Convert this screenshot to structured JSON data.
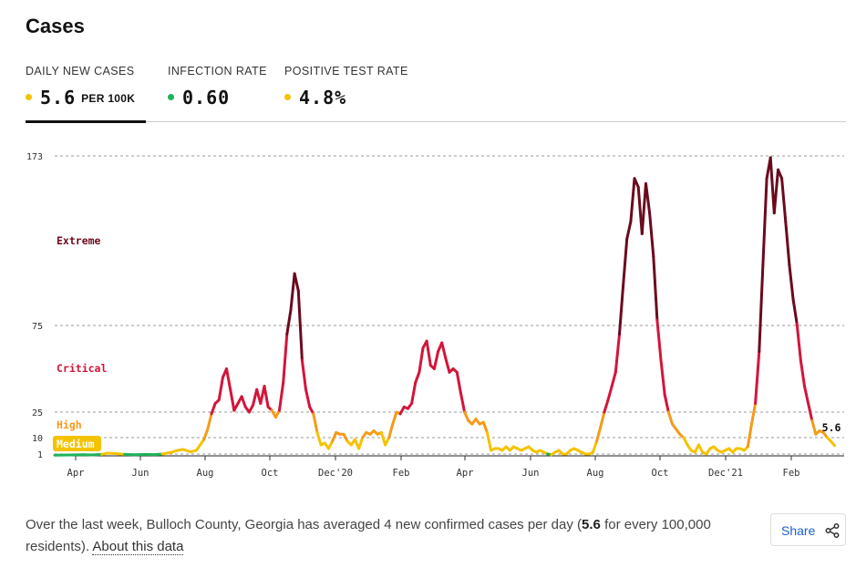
{
  "title": "Cases",
  "metrics": [
    {
      "label": "DAILY NEW CASES",
      "value": "5.6",
      "unit": "PER 100K",
      "dot_color": "#f5c200"
    },
    {
      "label": "INFECTION RATE",
      "value": "0.60",
      "unit": "",
      "dot_color": "#1fb25a"
    },
    {
      "label": "POSITIVE TEST RATE",
      "value": "4.8%",
      "unit": "",
      "dot_color": "#f5c200"
    }
  ],
  "zones": {
    "extreme": "Extreme",
    "critical": "Critical",
    "high": "High",
    "medium": "Medium"
  },
  "colors": {
    "extreme": "#6b0a1e",
    "critical": "#d3153a",
    "high": "#f59a1a",
    "medium": "#f5c200",
    "low": "#1fb25a"
  },
  "chart_data": {
    "type": "line",
    "ytick_labels": [
      "173",
      "75",
      "25",
      "10",
      "1"
    ],
    "thresholds": [
      1,
      10,
      25,
      75
    ],
    "xtick_labels": [
      "Apr",
      "Jun",
      "Aug",
      "Oct",
      "Dec'20",
      "Feb",
      "Apr",
      "Jun",
      "Aug",
      "Oct",
      "Dec'21",
      "Feb"
    ],
    "end_label": "5.6",
    "series": [
      {
        "values": [
          [
            0,
            0.4
          ],
          [
            8,
            0.5
          ],
          [
            15,
            0.6
          ],
          [
            20,
            0.5
          ],
          [
            25,
            0.8
          ],
          [
            28,
            1.5
          ],
          [
            33,
            1.2
          ],
          [
            37,
            0.8
          ],
          [
            42,
            0.6
          ],
          [
            48,
            0.8
          ],
          [
            53,
            0.7
          ],
          [
            57,
            1
          ],
          [
            62,
            2
          ],
          [
            65,
            3
          ],
          [
            68,
            3.5
          ],
          [
            72,
            2.2
          ],
          [
            75,
            3
          ],
          [
            79,
            9
          ],
          [
            81,
            15
          ],
          [
            83,
            24
          ],
          [
            85,
            30
          ],
          [
            87,
            32
          ],
          [
            89,
            45
          ],
          [
            91,
            50
          ],
          [
            93,
            38
          ],
          [
            95,
            26
          ],
          [
            97,
            30
          ],
          [
            99,
            34
          ],
          [
            101,
            28
          ],
          [
            103,
            25
          ],
          [
            105,
            29
          ],
          [
            107,
            38
          ],
          [
            109,
            30
          ],
          [
            111,
            40
          ],
          [
            113,
            28
          ],
          [
            115,
            26
          ],
          [
            117,
            22
          ],
          [
            119,
            26
          ],
          [
            121,
            42
          ],
          [
            123,
            70
          ],
          [
            125,
            84
          ],
          [
            127,
            105
          ],
          [
            129,
            95
          ],
          [
            131,
            55
          ],
          [
            133,
            38
          ],
          [
            135,
            28
          ],
          [
            137,
            24
          ],
          [
            139,
            13
          ],
          [
            141,
            6
          ],
          [
            143,
            7
          ],
          [
            145,
            4
          ],
          [
            147,
            8
          ],
          [
            149,
            13
          ],
          [
            151,
            12
          ],
          [
            153,
            12
          ],
          [
            155,
            8
          ],
          [
            157,
            6
          ],
          [
            159,
            9
          ],
          [
            161,
            4
          ],
          [
            163,
            10
          ],
          [
            165,
            13
          ],
          [
            167,
            12
          ],
          [
            169,
            14
          ],
          [
            171,
            12
          ],
          [
            173,
            13
          ],
          [
            175,
            6
          ],
          [
            177,
            10
          ],
          [
            179,
            18
          ],
          [
            181,
            25
          ],
          [
            183,
            24
          ],
          [
            185,
            28
          ],
          [
            187,
            27
          ],
          [
            189,
            30
          ],
          [
            191,
            42
          ],
          [
            193,
            48
          ],
          [
            195,
            62
          ],
          [
            197,
            66
          ],
          [
            199,
            52
          ],
          [
            201,
            50
          ],
          [
            203,
            60
          ],
          [
            205,
            65
          ],
          [
            207,
            56
          ],
          [
            209,
            48
          ],
          [
            211,
            50
          ],
          [
            213,
            48
          ],
          [
            215,
            36
          ],
          [
            217,
            25
          ],
          [
            219,
            20
          ],
          [
            221,
            18
          ],
          [
            223,
            21
          ],
          [
            225,
            18
          ],
          [
            227,
            19
          ],
          [
            229,
            13
          ],
          [
            231,
            3
          ],
          [
            233,
            4
          ],
          [
            235,
            4
          ],
          [
            237,
            3
          ],
          [
            239,
            5
          ],
          [
            241,
            3
          ],
          [
            243,
            5
          ],
          [
            245,
            4
          ],
          [
            247,
            3
          ],
          [
            249,
            4
          ],
          [
            251,
            5
          ],
          [
            253,
            3
          ],
          [
            255,
            2
          ],
          [
            257,
            3
          ],
          [
            259,
            2
          ],
          [
            261,
            1
          ],
          [
            263,
            0.6
          ],
          [
            265,
            2
          ],
          [
            267,
            3
          ],
          [
            269,
            1
          ],
          [
            271,
            1
          ],
          [
            273,
            3
          ],
          [
            275,
            4
          ],
          [
            277,
            3
          ],
          [
            279,
            2
          ],
          [
            281,
            1
          ],
          [
            283,
            1
          ],
          [
            285,
            2
          ],
          [
            287,
            8
          ],
          [
            289,
            16
          ],
          [
            291,
            25
          ],
          [
            293,
            32
          ],
          [
            295,
            40
          ],
          [
            297,
            48
          ],
          [
            299,
            70
          ],
          [
            301,
            98
          ],
          [
            303,
            125
          ],
          [
            305,
            135
          ],
          [
            307,
            160
          ],
          [
            309,
            155
          ],
          [
            311,
            128
          ],
          [
            313,
            157
          ],
          [
            315,
            140
          ],
          [
            317,
            115
          ],
          [
            319,
            78
          ],
          [
            321,
            55
          ],
          [
            323,
            35
          ],
          [
            325,
            25
          ],
          [
            327,
            18
          ],
          [
            329,
            15
          ],
          [
            331,
            12
          ],
          [
            333,
            10
          ],
          [
            335,
            6
          ],
          [
            337,
            3
          ],
          [
            339,
            2
          ],
          [
            341,
            6
          ],
          [
            343,
            2
          ],
          [
            345,
            1
          ],
          [
            347,
            4
          ],
          [
            349,
            5
          ],
          [
            351,
            3
          ],
          [
            353,
            2
          ],
          [
            355,
            3
          ],
          [
            357,
            4
          ],
          [
            359,
            2
          ],
          [
            361,
            4
          ],
          [
            363,
            4
          ],
          [
            365,
            3
          ],
          [
            367,
            5
          ],
          [
            369,
            18
          ],
          [
            371,
            30
          ],
          [
            373,
            60
          ],
          [
            375,
            110
          ],
          [
            377,
            160
          ],
          [
            379,
            172
          ],
          [
            381,
            140
          ],
          [
            383,
            165
          ],
          [
            385,
            160
          ],
          [
            387,
            135
          ],
          [
            389,
            110
          ],
          [
            391,
            90
          ],
          [
            393,
            76
          ],
          [
            395,
            55
          ],
          [
            397,
            40
          ],
          [
            399,
            30
          ],
          [
            401,
            20
          ],
          [
            403,
            12
          ],
          [
            405,
            14
          ],
          [
            407,
            13
          ],
          [
            409,
            10
          ],
          [
            411,
            8
          ],
          [
            413,
            5.6
          ]
        ]
      }
    ]
  }
}
